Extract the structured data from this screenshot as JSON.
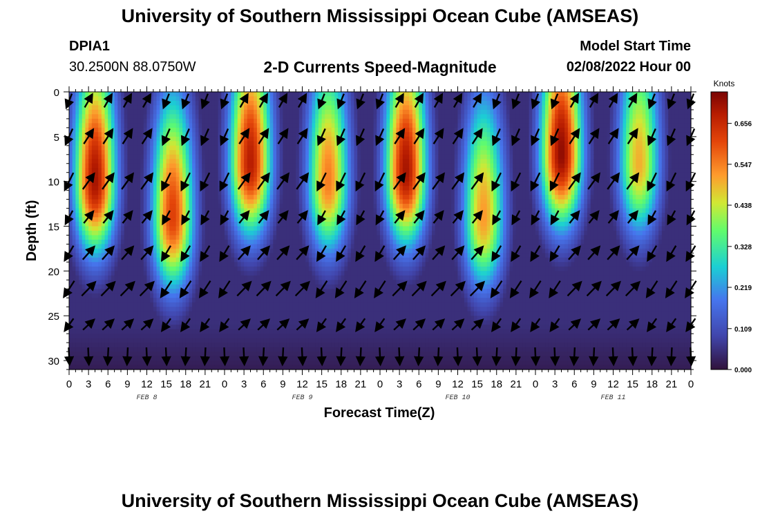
{
  "header": {
    "title": "University of Southern Mississippi Ocean Cube (AMSEAS)",
    "station_id": "DPIA1",
    "station_coords": "30.2500N  88.0750W",
    "subtitle": "2-D Currents Speed-Magnitude",
    "model_start_label": "Model Start Time",
    "model_start_value": "02/08/2022 Hour 00"
  },
  "footer": {
    "title": "University of Southern Mississippi Ocean Cube (AMSEAS)"
  },
  "chart_data": {
    "type": "heatmap",
    "title": "2-D Currents Speed-Magnitude",
    "xlabel": "Forecast Time(Z)",
    "ylabel": "Depth (ft)",
    "x_range_hours": [
      0,
      96
    ],
    "ylim": [
      0,
      31
    ],
    "y_ticks": [
      0,
      5,
      10,
      15,
      20,
      25,
      30
    ],
    "x_tick_labels": [
      "0",
      "3",
      "6",
      "9",
      "12",
      "15",
      "18",
      "21",
      "0",
      "3",
      "6",
      "9",
      "12",
      "15",
      "18",
      "21",
      "0",
      "3",
      "6",
      "9",
      "12",
      "15",
      "18",
      "21",
      "0",
      "3",
      "6",
      "9",
      "12",
      "15",
      "18",
      "21",
      "0"
    ],
    "date_labels": [
      "FEB 8",
      "FEB 9",
      "FEB 10",
      "FEB 11"
    ],
    "colorbar": {
      "units": "Knots",
      "min": 0.0,
      "max": 0.74,
      "tick_labels": [
        "0.656",
        "0.547",
        "0.438",
        "0.328",
        "0.219",
        "0.109",
        "0.000"
      ],
      "tick_values": [
        0.656,
        0.547,
        0.438,
        0.328,
        0.219,
        0.109,
        0.0
      ]
    },
    "speed_peaks_knots": [
      {
        "hour": 4,
        "speed": 0.7,
        "depth_ft": 10
      },
      {
        "hour": 16,
        "speed": 0.62,
        "depth_ft": 14
      },
      {
        "hour": 28,
        "speed": 0.68,
        "depth_ft": 8
      },
      {
        "hour": 40,
        "speed": 0.55,
        "depth_ft": 10
      },
      {
        "hour": 52,
        "speed": 0.7,
        "depth_ft": 9
      },
      {
        "hour": 64,
        "speed": 0.52,
        "depth_ft": 14
      },
      {
        "hour": 76,
        "speed": 0.72,
        "depth_ft": 7
      },
      {
        "hour": 88,
        "speed": 0.5,
        "depth_ft": 8
      }
    ],
    "vectors": "current direction arrows sampled every 3 hours at depth levels 1 to 30 ft"
  }
}
